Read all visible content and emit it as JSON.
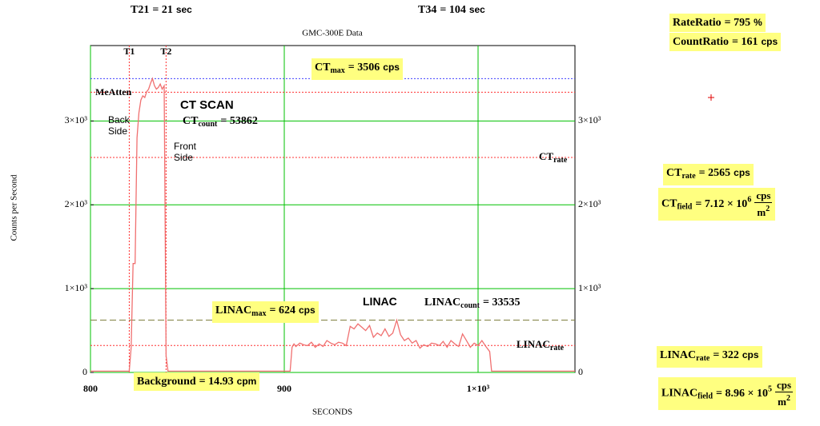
{
  "chart_data": {
    "type": "line",
    "title": "GMC-300E Data",
    "x_label": "SECONDS",
    "y_label": "Counts per Second",
    "xlim": [
      800,
      1050
    ],
    "ylim": [
      0,
      3900
    ],
    "xticks": [
      800,
      900,
      {
        "value": 1000,
        "label": "1×10³"
      }
    ],
    "yticks": [
      0,
      {
        "value": 1000,
        "label": "1×10³"
      },
      {
        "value": 2000,
        "label": "2×10³"
      },
      {
        "value": 3000,
        "label": "3×10³"
      }
    ],
    "grid": true,
    "grid_color": "#00c000",
    "series": [
      {
        "color": "#f07070",
        "x": [
          800,
          819,
          820,
          821,
          822,
          823,
          824,
          825,
          826,
          827,
          828,
          829,
          830,
          831,
          832,
          833,
          834,
          835,
          836,
          837,
          838,
          839,
          840,
          903,
          904,
          905,
          906,
          908,
          910,
          912,
          914,
          916,
          918,
          920,
          922,
          924,
          926,
          928,
          930,
          932,
          934,
          936,
          938,
          940,
          942,
          944,
          946,
          948,
          950,
          952,
          954,
          956,
          958,
          960,
          962,
          964,
          966,
          968,
          970,
          972,
          974,
          976,
          978,
          980,
          982,
          984,
          986,
          988,
          990,
          992,
          994,
          996,
          998,
          1000,
          1002,
          1004,
          1006,
          1007,
          1050
        ],
        "values": [
          15,
          15,
          15,
          300,
          1300,
          1300,
          2800,
          3100,
          3250,
          3300,
          3280,
          3350,
          3380,
          3450,
          3506,
          3420,
          3380,
          3400,
          3440,
          3380,
          3420,
          200,
          15,
          15,
          300,
          340,
          310,
          350,
          330,
          320,
          360,
          300,
          340,
          310,
          380,
          350,
          330,
          360,
          350,
          320,
          550,
          520,
          580,
          540,
          500,
          560,
          420,
          470,
          440,
          520,
          430,
          470,
          624,
          450,
          380,
          410,
          350,
          380,
          290,
          330,
          310,
          350,
          340,
          320,
          370,
          300,
          380,
          340,
          310,
          460,
          380,
          300,
          350,
          320,
          380,
          310,
          250,
          15,
          15
        ]
      }
    ],
    "ref_lines": [
      {
        "value": 3506,
        "color": "#4040ff",
        "dash": "2,2"
      },
      {
        "value": 3343,
        "color": "#ff3030",
        "dash": "2,2"
      },
      {
        "value": 2565,
        "color": "#ff3030",
        "dash": "2,2"
      },
      {
        "value": 624,
        "color": "#808040",
        "dash": "8,4"
      },
      {
        "value": 322,
        "color": "#ff3030",
        "dash": "2,2"
      }
    ],
    "vlines": [
      {
        "value": 820,
        "label": "T1",
        "color": "#ff3030"
      },
      {
        "value": 839,
        "label": "T2",
        "color": "#ff3030"
      }
    ],
    "labels": [
      "MeAtten",
      "Back Side",
      "Front Side",
      "CT SCAN",
      "LINAC"
    ]
  },
  "formulas": [
    {
      "base": "T21",
      "text": "= 21",
      "unit": "sec"
    },
    {
      "base": "T34",
      "text": "= 104",
      "unit": "sec"
    },
    {
      "base": "RateRatio",
      "text": "= 795",
      "unit": "%"
    },
    {
      "base": "CountRatio",
      "text": "= 161",
      "unit": "cps"
    },
    {
      "base": "CT",
      "sub": "max",
      "text": "= 3506",
      "unit": "cps"
    },
    {
      "base": "CT",
      "sub": "count",
      "text": "= 53862"
    },
    {
      "base": "LINAC",
      "sub": "max",
      "text": "= 624",
      "unit": "cps"
    },
    {
      "base": "LINAC",
      "sub": "count",
      "text": "= 33535"
    },
    {
      "base": "Background",
      "text": "= 14.93",
      "unit": "cpm"
    },
    {
      "base": "CT",
      "sub": "rate",
      "text": "= 2565",
      "unit": "cps"
    },
    {
      "base": "CT",
      "sub": "field",
      "text": "= 7.12 × 10",
      "exp": "6",
      "num": "cps",
      "den": "m",
      "den_exp": "2"
    },
    {
      "base": "LINAC",
      "sub": "rate",
      "text": "= 322",
      "unit": "cps"
    },
    {
      "base": "LINAC",
      "sub": "field",
      "text": "= 8.96 × 10",
      "exp": "5",
      "num": "cps",
      "den": "m",
      "den_exp": "2"
    },
    {
      "base": "CT",
      "sub": "rate"
    },
    {
      "base": "LINAC",
      "sub": "rate"
    }
  ]
}
